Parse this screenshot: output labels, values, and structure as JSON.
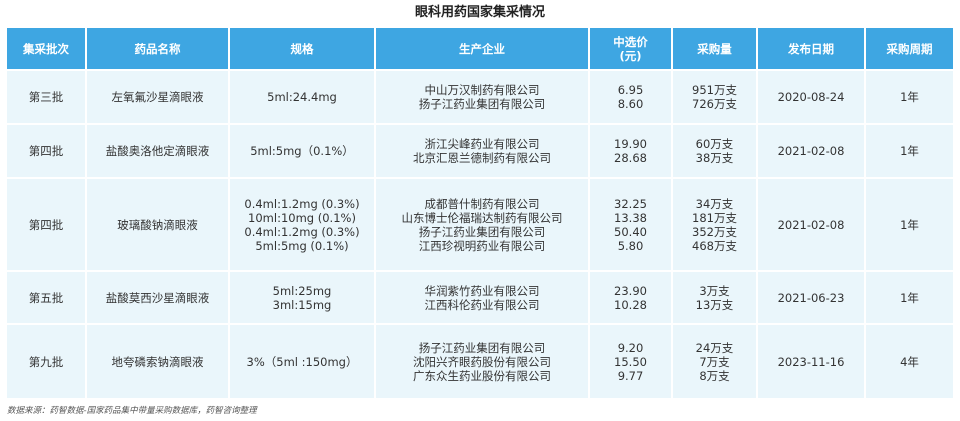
{
  "title": "眼科用药国家集采情况",
  "headers": [
    "集采批次",
    "药品名称",
    "规格",
    "生产企业",
    "中选价\n(元)",
    "采购量",
    "发布日期",
    "采购周期"
  ],
  "rows": [
    {
      "batch": "第三批",
      "drug": "左氧氟沙星滴眼液",
      "specs": [
        "5ml:24.4mg"
      ],
      "companies": [
        "中山万汉制药有限公司",
        "扬子江药业集团有限公司"
      ],
      "prices": [
        "6.95",
        "8.60"
      ],
      "volumes": [
        "951万支",
        "726万支"
      ],
      "date": "2020-08-24",
      "cycle": "1年"
    },
    {
      "batch": "第四批",
      "drug": "盐酸奥洛他定滴眼液",
      "specs": [
        "5ml:5mg（0.1%）"
      ],
      "companies": [
        "浙江尖峰药业有限公司",
        "北京汇恩兰德制药有限公司"
      ],
      "prices": [
        "19.90",
        "28.68"
      ],
      "volumes": [
        "60万支",
        "38万支"
      ],
      "date": "2021-02-08",
      "cycle": "1年"
    },
    {
      "batch": "第四批",
      "drug": "玻璃酸钠滴眼液",
      "specs": [
        "0.4ml:1.2mg (0.3%)",
        "10ml:10mg (0.1%)",
        "0.4ml:1.2mg (0.3%)",
        "5ml:5mg  (0.1%)"
      ],
      "companies": [
        "成都普什制药有限公司",
        "山东博士伦福瑞达制药有限公司",
        "扬子江药业集团有限公司",
        "江西珍视明药业有限公司"
      ],
      "prices": [
        "32.25",
        "13.38",
        "50.40",
        "5.80"
      ],
      "volumes": [
        "34万支",
        "181万支",
        "352万支",
        "468万支"
      ],
      "date": "2021-02-08",
      "cycle": "1年"
    },
    {
      "batch": "第五批",
      "drug": "盐酸莫西沙星滴眼液",
      "specs": [
        "5ml:25mg",
        "3ml:15mg"
      ],
      "companies": [
        "华润紫竹药业有限公司",
        "江西科伦药业有限公司"
      ],
      "prices": [
        "23.90",
        "10.28"
      ],
      "volumes": [
        "3万支",
        "13万支"
      ],
      "date": "2021-06-23",
      "cycle": "1年"
    },
    {
      "batch": "第九批",
      "drug": "地夸磷索钠滴眼液",
      "specs": [
        "3%（5ml :150mg）"
      ],
      "companies": [
        "扬子江药业集团有限公司",
        "沈阳兴齐眼药股份有限公司",
        "广东众生药业股份有限公司"
      ],
      "prices": [
        "9.20",
        "15.50",
        "9.77"
      ],
      "volumes": [
        "24万支",
        "7万支",
        "8万支"
      ],
      "date": "2023-11-16",
      "cycle": "4年"
    }
  ],
  "source": "数据来源：药智数据-国家药品集中带量采购数据库，药智咨询整理",
  "colors": {
    "header_bg": "#3ea6e2",
    "row_bg": "#eaf6fb"
  }
}
